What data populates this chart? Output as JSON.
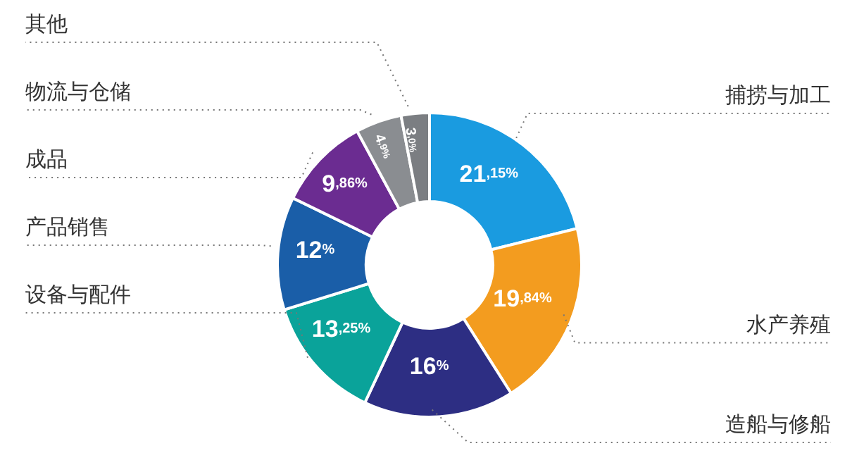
{
  "chart_data": {
    "type": "donut",
    "categories": [
      "捕捞与加工",
      "水产养殖",
      "造船与修船",
      "设备与配件",
      "产品销售",
      "成品",
      "物流与仓储",
      "其他"
    ],
    "values": [
      21.15,
      19.84,
      16,
      13.25,
      12,
      9.86,
      4.9,
      3.0
    ],
    "colors": [
      "#1a9be0",
      "#f39c1f",
      "#2d2e83",
      "#0aa39a",
      "#1a5ea8",
      "#6b2c91",
      "#8a8d91",
      "#7b7e82"
    ],
    "value_labels": [
      "21,15%",
      "19,84%",
      "16%",
      "13,25%",
      "12%",
      "9,86%",
      "4,9%",
      "3,0%"
    ]
  }
}
